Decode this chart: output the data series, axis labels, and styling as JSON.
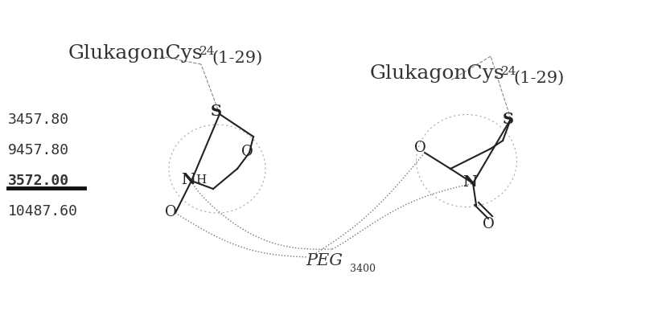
{
  "title": "",
  "background_color": "#ffffff",
  "label_left_title1": "GlukagonCys",
  "label_left_sup1": "24",
  "label_left_range1": "(1-29)",
  "label_right_title1": "GlukagonCys",
  "label_right_sup1": "24",
  "label_right_range1": "(1-29)",
  "mass_values": [
    "3457.80",
    "9457.80",
    "3572.00",
    "10487.60"
  ],
  "underlined_index": 2,
  "peg_label": "PEG",
  "peg_sub": "3400",
  "atoms_left": [
    "S",
    "O",
    "N",
    "O"
  ],
  "atoms_right": [
    "S",
    "O",
    "N",
    "O"
  ],
  "figsize": [
    8.23,
    3.87
  ],
  "dpi": 100
}
